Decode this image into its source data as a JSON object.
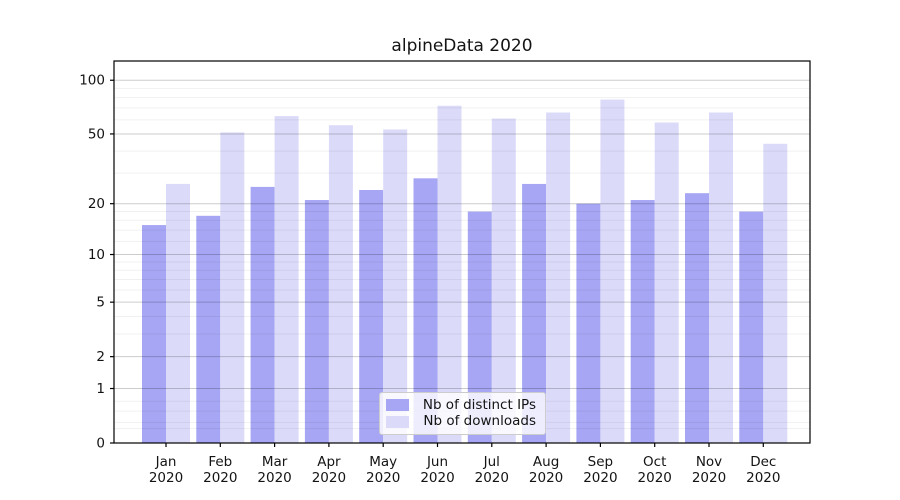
{
  "chart_data": {
    "type": "bar",
    "title": "alpineData 2020",
    "categories": [
      "Jan 2020",
      "Feb 2020",
      "Mar 2020",
      "Apr 2020",
      "May 2020",
      "Jun 2020",
      "Jul 2020",
      "Aug 2020",
      "Sep 2020",
      "Oct 2020",
      "Nov 2020",
      "Dec 2020"
    ],
    "series": [
      {
        "key": "distinct-ips",
        "name": "Nb of distinct IPs",
        "color": "#a6a6f4",
        "values": [
          15,
          17,
          25,
          21,
          24,
          28,
          18,
          26,
          20,
          21,
          23,
          18
        ]
      },
      {
        "key": "downloads",
        "name": "Nb of downloads",
        "color": "#dbdbf9",
        "values": [
          26,
          51,
          63,
          56,
          53,
          72,
          61,
          66,
          78,
          58,
          66,
          44
        ]
      }
    ],
    "y_axis": {
      "scale": "symlog",
      "ticks": [
        0,
        1,
        2,
        5,
        10,
        20,
        50,
        100
      ],
      "minor_gridlines": [
        0.2,
        0.3,
        0.5,
        0.7,
        3,
        4,
        6,
        7,
        8,
        9,
        12,
        14,
        16,
        18,
        30,
        40,
        60,
        70,
        80,
        90
      ],
      "max": 128
    },
    "grid": true,
    "legend_position": "lower center"
  }
}
